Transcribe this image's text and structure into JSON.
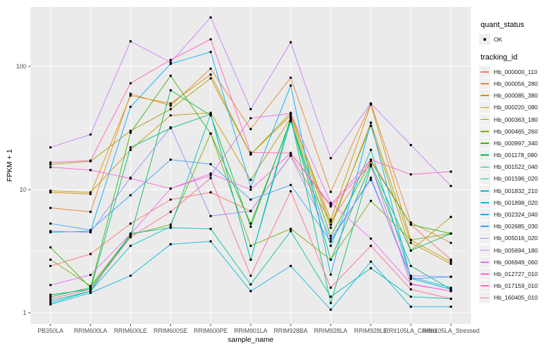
{
  "figure": {
    "panel_bg": "#EBEBEB",
    "grid_major_color": "#FFFFFF",
    "grid_minor_color": "#F7F7F7",
    "tick_mark_color": "#333333",
    "tick_label_color": "#4D4D4D",
    "point_color": "#000000",
    "legend_key_bg": "#F0F0F0"
  },
  "chart_data": {
    "type": "line",
    "title": "",
    "xlabel": "sample_name",
    "ylabel": "FPKM + 1",
    "y_scale": "log10",
    "ylim": [
      1,
      304
    ],
    "y_ticks": [
      1,
      10,
      100
    ],
    "y_minor_ticks": [
      3.162,
      31.62
    ],
    "grid": true,
    "legend_position": "right",
    "categories": [
      "PB350LA",
      "RRIM600LA",
      "RRIM600LE",
      "RRIM600SE",
      "RRIM600PE",
      "RRIM901LA",
      "RRIM928BA",
      "RRIM928LA",
      "RRIM928LE",
      "RRII105LA_Control",
      "RRII105LA_Stressed"
    ],
    "quant_status": {
      "title": "quant_status",
      "items": [
        {
          "label": "OK",
          "shape": "point"
        }
      ]
    },
    "tracking_legend_title": "tracking_id",
    "series": [
      {
        "name": "Hb_000000_110",
        "color": "#F8766D",
        "values": [
          2.4,
          3.0,
          5.3,
          8.3,
          9.5,
          6.7,
          19,
          5.5,
          17.5,
          5.2,
          2.7
        ]
      },
      {
        "name": "Hb_000056_280",
        "color": "#EA8331",
        "values": [
          7.1,
          6.6,
          60,
          48,
          96,
          31,
          81,
          9.6,
          50,
          5.4,
          3.7
        ]
      },
      {
        "name": "Hb_000085_380",
        "color": "#D89000",
        "values": [
          9.5,
          9.2,
          58,
          50,
          86,
          19.3,
          40,
          5.7,
          49,
          3.9,
          2.6
        ]
      },
      {
        "name": "Hb_000220_080",
        "color": "#C09B00",
        "values": [
          9.8,
          9.5,
          21,
          40,
          42,
          12,
          38,
          4.9,
          35,
          3.7,
          2.5
        ]
      },
      {
        "name": "Hb_000363_180",
        "color": "#A3A500",
        "values": [
          16,
          17,
          30,
          45,
          80,
          19.3,
          42,
          5.2,
          33,
          3.2,
          6.0
        ]
      },
      {
        "name": "Hb_000465_260",
        "color": "#7CAE00",
        "values": [
          2.7,
          1.65,
          4.3,
          5.2,
          28.5,
          3.5,
          4.8,
          2.7,
          8.1,
          3.9,
          4.4
        ]
      },
      {
        "name": "Hb_000997_340",
        "color": "#39B600",
        "values": [
          3.4,
          1.6,
          29,
          84,
          28.5,
          5.3,
          36,
          4.2,
          17,
          5.2,
          4.4
        ]
      },
      {
        "name": "Hb_001178_080",
        "color": "#00BB4E",
        "values": [
          1.35,
          1.6,
          4.2,
          64,
          40,
          5.0,
          37,
          2.7,
          16,
          3.2,
          4.4
        ]
      },
      {
        "name": "Hb_001522_040",
        "color": "#00BF7D",
        "values": [
          1.4,
          1.55,
          22,
          31.5,
          41,
          2.7,
          39,
          1.2,
          15.5,
          2.4,
          1.55
        ]
      },
      {
        "name": "Hb_001596_020",
        "color": "#00C1A3",
        "values": [
          1.25,
          1.5,
          4.4,
          4.9,
          4.8,
          1.7,
          4.6,
          1.35,
          2.3,
          1.35,
          1.3
        ]
      },
      {
        "name": "Hb_001832_210",
        "color": "#00BFC4",
        "values": [
          1.2,
          1.5,
          3.5,
          5.0,
          41,
          2.7,
          36,
          3.5,
          21,
          1.95,
          1.6
        ]
      },
      {
        "name": "Hb_001898_020",
        "color": "#00BAE0",
        "values": [
          1.17,
          1.45,
          2.0,
          3.6,
          3.8,
          1.5,
          2.4,
          1.06,
          2.6,
          1.12,
          1.12
        ]
      },
      {
        "name": "Hb_002324_040",
        "color": "#00B0F6",
        "values": [
          4.5,
          4.6,
          47,
          105,
          131,
          10.5,
          70,
          2.04,
          35,
          1.9,
          1.55
        ]
      },
      {
        "name": "Hb_002685_030",
        "color": "#35A2FF",
        "values": [
          5.3,
          4.7,
          9.0,
          17.5,
          16.1,
          8.3,
          10.9,
          3.8,
          12.5,
          1.88,
          1.96
        ]
      },
      {
        "name": "Hb_005016_020",
        "color": "#9590FF",
        "values": [
          4.6,
          4.5,
          12.5,
          32,
          6.1,
          6.7,
          18.8,
          4.0,
          12,
          2.0,
          1.96
        ]
      },
      {
        "name": "Hb_005694_180",
        "color": "#C77CFF",
        "values": [
          22,
          28,
          160,
          108,
          250,
          45,
          157,
          18,
          50,
          23,
          10.7
        ]
      },
      {
        "name": "Hb_006949_060",
        "color": "#E76BF3",
        "values": [
          1.68,
          2.03,
          4.35,
          10.2,
          13,
          38,
          41.5,
          7.8,
          4.0,
          1.72,
          1.5
        ]
      },
      {
        "name": "Hb_012727_010",
        "color": "#FA62DB",
        "values": [
          15.2,
          14.4,
          12.3,
          10.2,
          13.5,
          10.0,
          19.8,
          7.3,
          16,
          1.7,
          1.5
        ]
      },
      {
        "name": "Hb_017159_010",
        "color": "#FF62BC",
        "values": [
          16.6,
          17.2,
          73,
          113,
          166,
          20,
          19.8,
          7.5,
          17.5,
          13.3,
          14
        ]
      },
      {
        "name": "Hb_160405_010",
        "color": "#FF6A98",
        "values": [
          1.3,
          1.55,
          4.1,
          6.6,
          12.4,
          2.0,
          9.7,
          1.6,
          3.5,
          1.55,
          1.3
        ]
      }
    ]
  }
}
